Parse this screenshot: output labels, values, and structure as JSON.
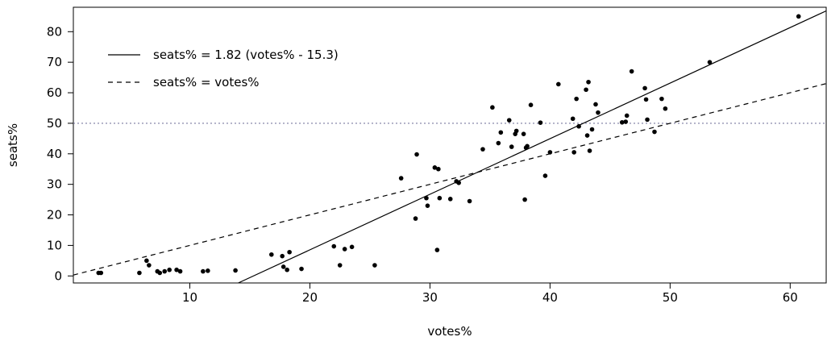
{
  "chart_data": {
    "type": "scatter",
    "xlabel": "votes%",
    "ylabel": "seats%",
    "xlim": [
      0.3,
      63.0
    ],
    "ylim": [
      -2.3,
      88.0
    ],
    "xticks": [
      10,
      20,
      30,
      40,
      50,
      60
    ],
    "yticks": [
      0,
      10,
      20,
      30,
      40,
      50,
      60,
      70,
      80
    ],
    "grid": false,
    "legend_position": "top-left",
    "reference_line": {
      "y": 50,
      "style": "dotted",
      "color": "#7a7aa0"
    },
    "lines": [
      {
        "name": "seats% = 1.82 (votes% - 15.3)",
        "style": "solid",
        "slope": 1.82,
        "intercept_x": 15.3,
        "color": "#000000"
      },
      {
        "name": "seats% = votes%",
        "style": "dashed",
        "slope": 1.0,
        "intercept_x": 0,
        "color": "#000000"
      }
    ],
    "points": {
      "x": [
        2.4,
        2.6,
        5.8,
        6.4,
        6.6,
        7.3,
        7.5,
        7.9,
        8.3,
        8.9,
        9.2,
        11.1,
        11.5,
        13.8,
        16.8,
        17.7,
        17.8,
        18.1,
        18.3,
        19.3,
        22.0,
        22.5,
        22.9,
        23.5,
        25.4,
        27.6,
        28.8,
        28.9,
        29.7,
        29.8,
        30.4,
        30.6,
        30.7,
        30.8,
        31.7,
        32.2,
        32.4,
        33.3,
        34.4,
        35.2,
        35.7,
        35.9,
        36.6,
        36.8,
        37.1,
        37.2,
        37.8,
        37.9,
        38.0,
        38.1,
        38.4,
        39.2,
        39.6,
        40.0,
        40.7,
        41.9,
        42.0,
        42.2,
        42.4,
        43.0,
        43.1,
        43.2,
        43.3,
        43.5,
        43.8,
        44.0,
        46.0,
        46.3,
        46.4,
        46.8,
        47.9,
        48.0,
        48.1,
        48.7,
        49.3,
        49.6,
        53.3,
        60.7
      ],
      "y": [
        1.0,
        1.0,
        1.0,
        5.0,
        3.5,
        1.5,
        1.0,
        1.5,
        2.0,
        2.0,
        1.5,
        1.5,
        1.7,
        1.8,
        7.0,
        6.5,
        3.0,
        2.0,
        7.8,
        2.3,
        9.7,
        3.5,
        8.8,
        9.5,
        3.5,
        32.0,
        18.8,
        39.8,
        25.5,
        23.0,
        35.5,
        8.5,
        35.0,
        25.5,
        25.2,
        31.0,
        30.5,
        24.5,
        41.5,
        55.2,
        43.5,
        47.0,
        51.0,
        42.3,
        46.5,
        47.5,
        46.5,
        25.0,
        42.0,
        42.5,
        56.0,
        50.2,
        32.8,
        40.5,
        62.8,
        51.5,
        40.5,
        58.0,
        49.0,
        61.0,
        46.0,
        63.5,
        41.0,
        48.0,
        56.2,
        53.5,
        50.3,
        50.5,
        52.5,
        67.0,
        61.5,
        57.8,
        51.2,
        47.2,
        58.0,
        54.8,
        70.0,
        85.0
      ]
    }
  }
}
